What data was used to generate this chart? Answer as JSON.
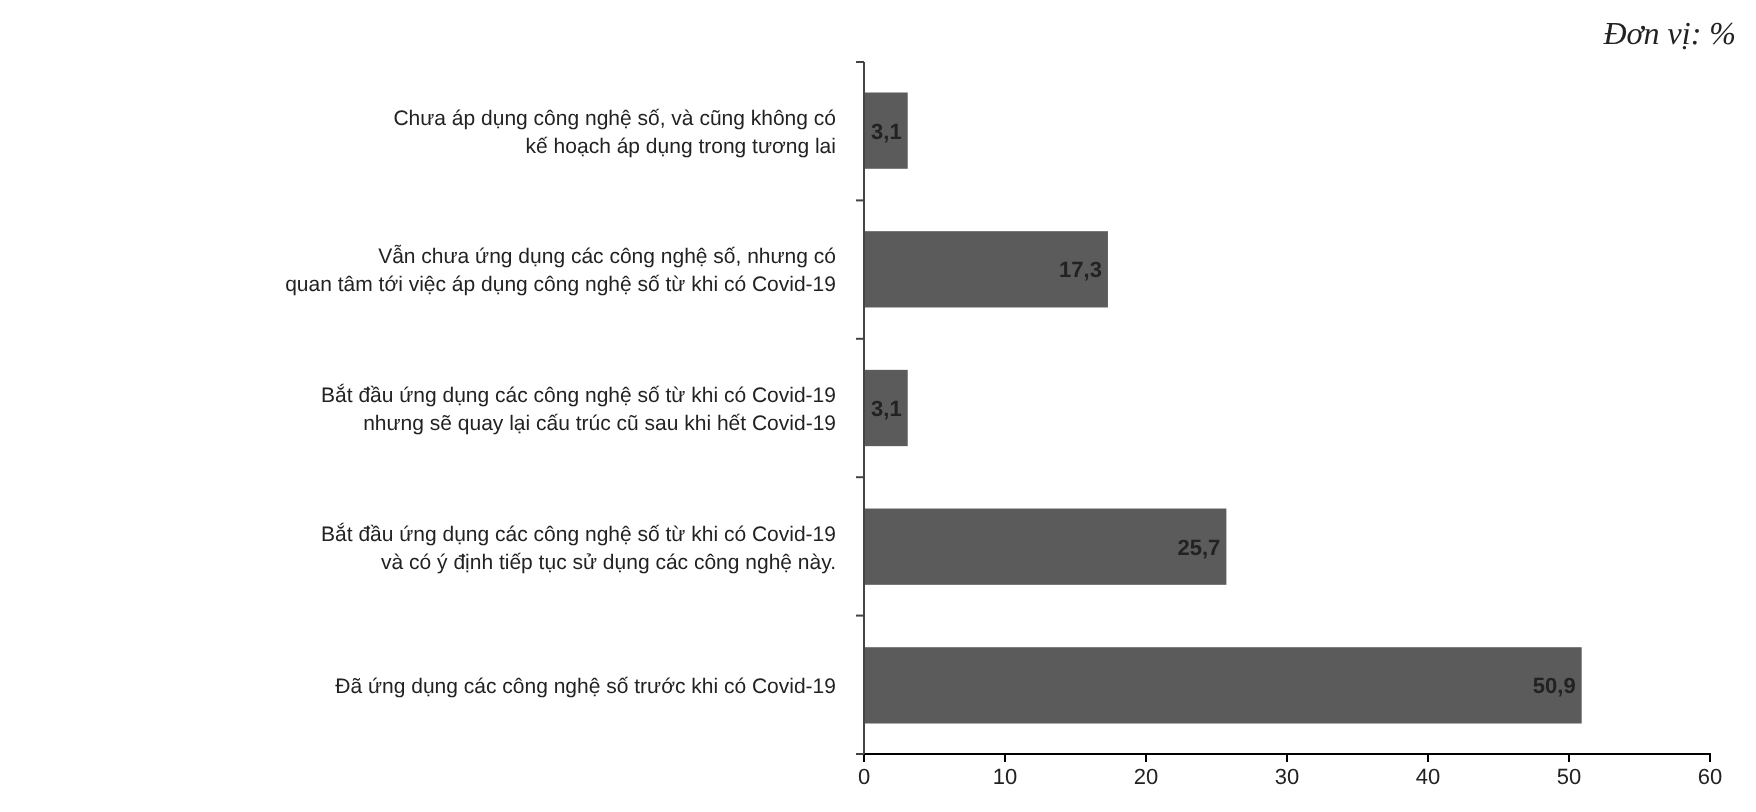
{
  "chart_data": {
    "type": "bar",
    "orientation": "horizontal",
    "categories": [
      "Chưa áp dụng công nghệ số, và cũng không có\nkế hoạch áp dụng trong tương lai",
      "Vẫn chưa ứng dụng các công nghệ số, nhưng có\nquan tâm tới việc áp dụng công nghệ số từ khi có Covid-19",
      "Bắt đầu ứng dụng các công nghệ số từ khi có Covid-19\nnhưng sẽ quay lại cấu trúc cũ sau khi hết Covid-19",
      "Bắt đầu ứng dụng các công nghệ số từ khi có Covid-19\nvà có ý định tiếp tục sử dụng các công nghệ này.",
      "Đã ứng dụng các công nghệ số trước khi có Covid-19"
    ],
    "values": [
      3.1,
      17.3,
      3.1,
      25.7,
      50.9
    ],
    "value_labels": [
      "3,1",
      "17,3",
      "3,1",
      "25,7",
      "50,9"
    ],
    "color": "#5b5b5b",
    "xlim": [
      0,
      60
    ],
    "xticks": [
      0,
      10,
      20,
      30,
      40,
      50,
      60
    ],
    "annotations": [
      "Đơn vị: %"
    ]
  }
}
